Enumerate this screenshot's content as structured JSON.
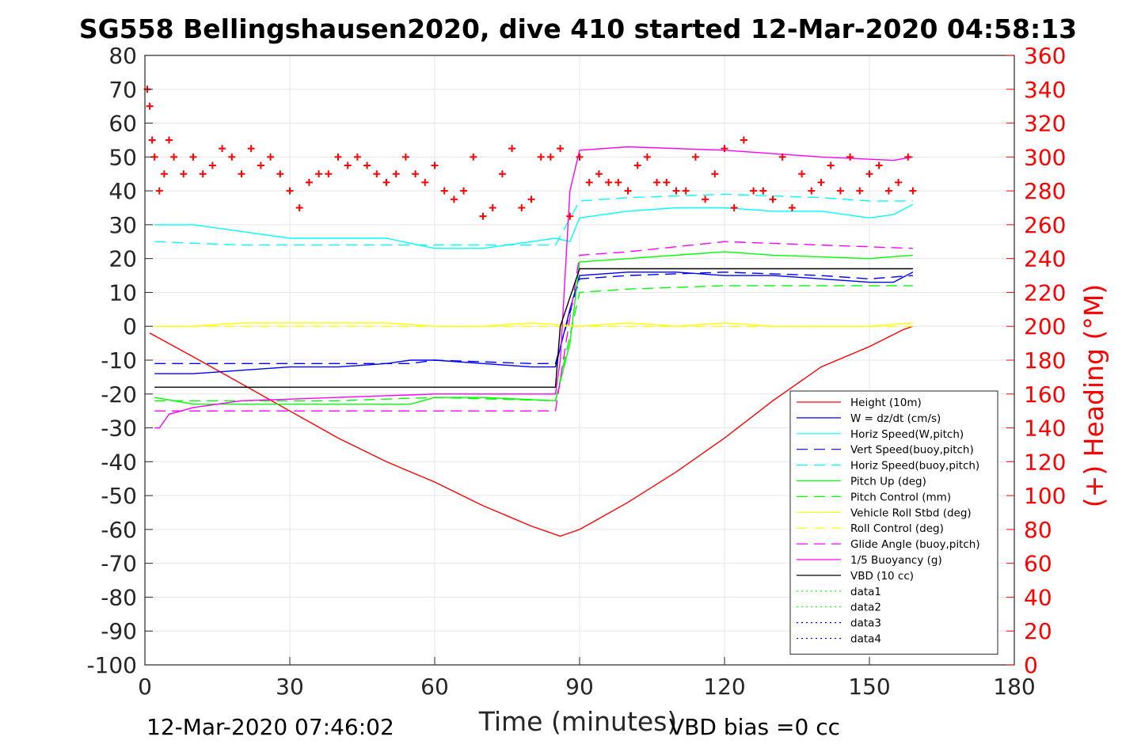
{
  "chart_data": {
    "type": "line",
    "title": "SG558 Bellingshausen2020, dive 410 started 12-Mar-2020 04:58:13",
    "xlabel": "Time (minutes)",
    "ylabel": "",
    "ylabel_right": "(+) Heading (°M)",
    "xlim": [
      0,
      180
    ],
    "ylim": [
      -100,
      80
    ],
    "ylim_right": [
      0,
      360
    ],
    "x_ticks": [
      "0",
      "30",
      "60",
      "90",
      "120",
      "150",
      "180"
    ],
    "y_ticks": [
      "-100",
      "-90",
      "-80",
      "-70",
      "-60",
      "-50",
      "-40",
      "-30",
      "-20",
      "-10",
      "0",
      "10",
      "20",
      "30",
      "40",
      "50",
      "60",
      "70",
      "80"
    ],
    "y_right_ticks": [
      "0",
      "20",
      "40",
      "60",
      "80",
      "100",
      "120",
      "140",
      "160",
      "180",
      "200",
      "220",
      "240",
      "260",
      "280",
      "300",
      "320",
      "340",
      "360"
    ],
    "grid": true,
    "legend_position": "bottom-right",
    "footer_left": "12-Mar-2020 07:46:02",
    "footer_right": "VBD bias =0 cc",
    "colors": {
      "red": "#ff0000",
      "blue": "#0000ff",
      "cyan": "#00ffff",
      "green": "#00ff00",
      "yellow": "#ffff00",
      "magenta": "#ff00ff",
      "black": "#000000"
    },
    "series": [
      {
        "name": "Height (10m)",
        "color": "#ff0000",
        "style": "solid",
        "x": [
          1,
          10,
          20,
          30,
          40,
          50,
          60,
          70,
          80,
          86,
          90,
          100,
          110,
          120,
          130,
          140,
          150,
          157,
          159
        ],
        "y": [
          -2,
          -9,
          -17,
          -25,
          -33,
          -40,
          -46,
          -53,
          -59,
          -62,
          -60,
          -52,
          -43,
          -33,
          -22,
          -12,
          -6,
          -1,
          0
        ]
      },
      {
        "name": "W = dz/dt (cm/s)",
        "color": "#0000ff",
        "style": "solid",
        "x": [
          2,
          10,
          20,
          30,
          40,
          50,
          55,
          60,
          70,
          80,
          85,
          88,
          90,
          100,
          110,
          120,
          130,
          140,
          150,
          155,
          159
        ],
        "y": [
          -14,
          -14,
          -13,
          -12,
          -12,
          -11,
          -10,
          -10,
          -11,
          -12,
          -12,
          5,
          15,
          16,
          16,
          15,
          15,
          14,
          13,
          13,
          16
        ]
      },
      {
        "name": "Horiz Speed(W,pitch)",
        "color": "#00ffff",
        "style": "solid",
        "x": [
          2,
          10,
          20,
          30,
          40,
          50,
          60,
          70,
          80,
          85,
          88,
          90,
          100,
          110,
          120,
          130,
          140,
          150,
          155,
          159
        ],
        "y": [
          30,
          30,
          28,
          26,
          26,
          26,
          23,
          23,
          25,
          26,
          25,
          32,
          34,
          35,
          35,
          34,
          34,
          32,
          33,
          36
        ]
      },
      {
        "name": "Vert Speed(buoy,pitch)",
        "color": "#0000ff",
        "style": "dashed",
        "x": [
          2,
          20,
          40,
          55,
          60,
          80,
          85,
          90,
          100,
          120,
          140,
          150,
          159
        ],
        "y": [
          -11,
          -11,
          -11,
          -11,
          -10,
          -11,
          -11,
          14,
          15,
          16,
          15,
          14,
          15
        ]
      },
      {
        "name": "Horiz Speed(buoy,pitch)",
        "color": "#00ffff",
        "style": "dashed",
        "x": [
          2,
          20,
          40,
          55,
          60,
          80,
          85,
          90,
          100,
          120,
          140,
          150,
          159
        ],
        "y": [
          25,
          24,
          24,
          24,
          24,
          24,
          24,
          37,
          38,
          39,
          38,
          37,
          37
        ]
      },
      {
        "name": "Pitch Up (deg)",
        "color": "#00ff00",
        "style": "solid",
        "x": [
          2,
          10,
          20,
          30,
          40,
          55,
          60,
          70,
          85,
          88,
          90,
          100,
          120,
          130,
          150,
          159
        ],
        "y": [
          -21,
          -23,
          -23,
          -23,
          -23,
          -23,
          -21,
          -21,
          -22,
          -5,
          19,
          20,
          22,
          21,
          20,
          21
        ]
      },
      {
        "name": "Pitch Control (mm)",
        "color": "#00ff00",
        "style": "dashed",
        "x": [
          2,
          20,
          40,
          60,
          85,
          90,
          100,
          120,
          140,
          159
        ],
        "y": [
          -22,
          -22,
          -22,
          -21,
          -22,
          10,
          11,
          12,
          12,
          12
        ]
      },
      {
        "name": "Vehicle Roll Stbd (deg)",
        "color": "#ffff00",
        "style": "solid",
        "x": [
          2,
          10,
          20,
          30,
          40,
          50,
          60,
          70,
          80,
          90,
          100,
          110,
          120,
          130,
          140,
          150,
          159
        ],
        "y": [
          0,
          0,
          1,
          1,
          1,
          1,
          0,
          0,
          1,
          0,
          1,
          0,
          1,
          0,
          0,
          0,
          1
        ]
      },
      {
        "name": "Roll Control (deg)",
        "color": "#ffff00",
        "style": "dashed",
        "x": [
          2,
          20,
          40,
          60,
          80,
          90,
          110,
          130,
          150,
          159
        ],
        "y": [
          0,
          0,
          0,
          0,
          0,
          0,
          0,
          0,
          0,
          0
        ]
      },
      {
        "name": "Glide Angle (buoy,pitch)",
        "color": "#ff00ff",
        "style": "dashed",
        "x": [
          2,
          20,
          40,
          60,
          85,
          90,
          100,
          120,
          140,
          159
        ],
        "y": [
          -25,
          -25,
          -25,
          -25,
          -25,
          21,
          22,
          25,
          24,
          23
        ]
      },
      {
        "name": "1/5 Buoyancy (g)",
        "color": "#ff00ff",
        "style": "solid",
        "x": [
          2,
          3,
          5,
          10,
          20,
          40,
          60,
          85,
          86,
          88,
          90,
          100,
          120,
          140,
          155,
          159
        ],
        "y": [
          -30,
          -30,
          -26,
          -24,
          -22,
          -21,
          -20,
          -20,
          -10,
          40,
          52,
          53,
          52,
          50,
          49,
          50
        ]
      },
      {
        "name": "VBD (10 cc)",
        "color": "#000000",
        "style": "solid",
        "x": [
          2,
          20,
          40,
          60,
          85,
          86,
          90,
          100,
          120,
          140,
          159
        ],
        "y": [
          -18,
          -18,
          -18,
          -18,
          -18,
          0,
          17,
          17,
          17,
          17,
          17
        ]
      },
      {
        "name": "data1",
        "color": "#00ff00",
        "style": "dotted",
        "x": [],
        "y": []
      },
      {
        "name": "data2",
        "color": "#00ff00",
        "style": "dotted",
        "x": [],
        "y": []
      },
      {
        "name": "data3",
        "color": "#0000ff",
        "style": "dotted",
        "x": [],
        "y": []
      },
      {
        "name": "data4",
        "color": "#0000ff",
        "style": "dotted",
        "x": [],
        "y": []
      }
    ],
    "heading": {
      "axis": "right",
      "color": "#ff0000",
      "marker": "+",
      "x": [
        0.5,
        1,
        1.5,
        2,
        3,
        4,
        5,
        6,
        8,
        10,
        12,
        14,
        16,
        18,
        20,
        22,
        24,
        26,
        28,
        30,
        32,
        34,
        36,
        38,
        40,
        42,
        44,
        46,
        48,
        50,
        52,
        54,
        56,
        58,
        60,
        62,
        64,
        66,
        68,
        70,
        72,
        74,
        76,
        78,
        80,
        82,
        84,
        86,
        88,
        90,
        92,
        94,
        96,
        98,
        100,
        102,
        104,
        106,
        108,
        110,
        112,
        114,
        116,
        118,
        120,
        122,
        124,
        126,
        128,
        130,
        132,
        134,
        136,
        138,
        140,
        142,
        144,
        146,
        148,
        150,
        152,
        154,
        156,
        158,
        159
      ],
      "y": [
        340,
        330,
        310,
        300,
        280,
        290,
        310,
        300,
        290,
        300,
        290,
        295,
        305,
        300,
        290,
        305,
        295,
        300,
        290,
        280,
        270,
        285,
        290,
        290,
        300,
        295,
        300,
        295,
        290,
        285,
        290,
        300,
        290,
        285,
        295,
        280,
        275,
        280,
        300,
        265,
        270,
        290,
        305,
        270,
        275,
        300,
        300,
        305,
        265,
        300,
        285,
        290,
        285,
        285,
        280,
        295,
        300,
        285,
        285,
        280,
        280,
        300,
        275,
        290,
        305,
        270,
        310,
        280,
        280,
        275,
        300,
        270,
        290,
        280,
        285,
        295,
        280,
        300,
        280,
        290,
        295,
        280,
        285,
        300,
        280
      ]
    }
  }
}
